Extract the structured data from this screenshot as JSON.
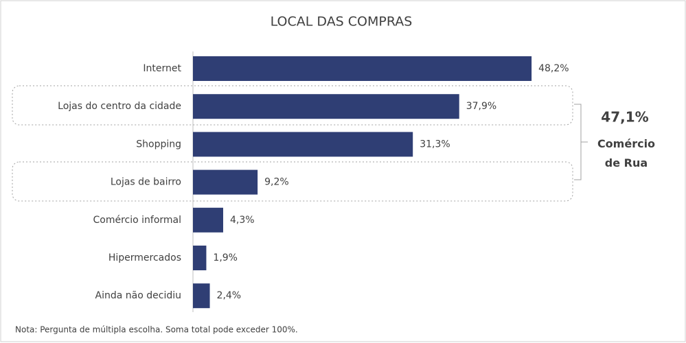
{
  "chart_data": {
    "type": "bar",
    "orientation": "horizontal",
    "title": "LOCAL DAS COMPRAS",
    "categories": [
      "Internet",
      "Lojas do centro da cidade",
      "Shopping",
      "Lojas de bairro",
      "Comércio informal",
      "Hipermercados",
      "Ainda não decidiu"
    ],
    "values": [
      48.2,
      37.9,
      31.3,
      9.2,
      4.3,
      1.9,
      2.4
    ],
    "value_labels": [
      "48,2%",
      "37,9%",
      "31,3%",
      "9,2%",
      "4,3%",
      "1,9%",
      "2,4%"
    ],
    "color": "#2f3e74",
    "annotation_value": "47,1%",
    "annotation_text": "Comércio de Rua",
    "note": "Nota: Pergunta de múltipla escolha. Soma total pode exceder 100%."
  }
}
